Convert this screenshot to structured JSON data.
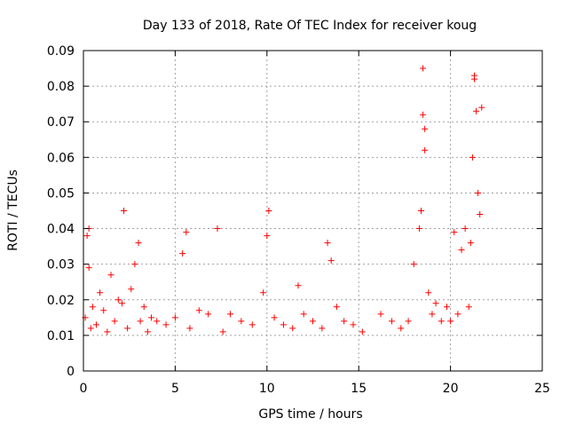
{
  "chart_data": {
    "type": "scatter",
    "title": "Day 133 of 2018, Rate Of TEC Index for receiver koug",
    "xlabel": "GPS time / hours",
    "ylabel": "ROTI / TECUs",
    "xlim": [
      0,
      25
    ],
    "ylim": [
      0,
      0.09
    ],
    "x_ticks": [
      "0",
      "5",
      "10",
      "15",
      "20",
      "25"
    ],
    "y_ticks": [
      "0",
      "0.01",
      "0.02",
      "0.03",
      "0.04",
      "0.05",
      "0.06",
      "0.07",
      "0.08",
      "0.09"
    ],
    "grid": true,
    "marker": "plus",
    "color": "#ff0000",
    "series": [
      {
        "x": [
          0.1,
          0.2,
          0.3,
          0.3,
          0.4,
          0.5,
          0.7,
          0.9,
          1.1,
          1.3,
          1.5,
          1.7,
          1.9,
          2.1,
          2.2,
          2.2,
          2.4,
          2.6,
          2.8,
          3.0,
          3.1,
          3.3,
          3.5,
          3.7,
          4.0,
          4.5,
          5.0,
          5.4,
          5.6,
          5.8,
          6.3,
          6.8,
          7.3,
          7.6,
          8.0,
          8.6,
          9.2,
          9.8,
          10.0,
          10.1,
          10.4,
          10.9,
          11.4,
          11.7,
          12.0,
          12.5,
          13.0,
          13.3,
          13.5,
          13.8,
          14.2,
          14.7,
          15.2,
          16.2,
          16.8,
          17.3,
          17.7,
          18.0,
          18.3,
          18.4,
          18.5,
          18.5,
          18.6,
          18.6,
          18.8,
          19.0,
          19.2,
          19.5,
          19.8,
          20.0,
          20.2,
          20.4,
          20.6,
          20.8,
          21.0,
          21.1,
          21.2,
          21.3,
          21.3,
          21.4,
          21.5,
          21.6,
          21.7
        ],
        "y": [
          0.015,
          0.038,
          0.04,
          0.029,
          0.012,
          0.018,
          0.013,
          0.022,
          0.017,
          0.011,
          0.027,
          0.014,
          0.02,
          0.019,
          0.045,
          0.045,
          0.012,
          0.023,
          0.03,
          0.036,
          0.014,
          0.018,
          0.011,
          0.015,
          0.014,
          0.013,
          0.015,
          0.033,
          0.039,
          0.012,
          0.017,
          0.016,
          0.04,
          0.011,
          0.016,
          0.014,
          0.013,
          0.022,
          0.038,
          0.045,
          0.015,
          0.013,
          0.012,
          0.024,
          0.016,
          0.014,
          0.012,
          0.036,
          0.031,
          0.018,
          0.014,
          0.013,
          0.011,
          0.016,
          0.014,
          0.012,
          0.014,
          0.03,
          0.04,
          0.045,
          0.085,
          0.072,
          0.068,
          0.062,
          0.022,
          0.016,
          0.019,
          0.014,
          0.018,
          0.014,
          0.039,
          0.016,
          0.034,
          0.04,
          0.018,
          0.036,
          0.06,
          0.083,
          0.082,
          0.073,
          0.05,
          0.044,
          0.074
        ]
      }
    ]
  }
}
